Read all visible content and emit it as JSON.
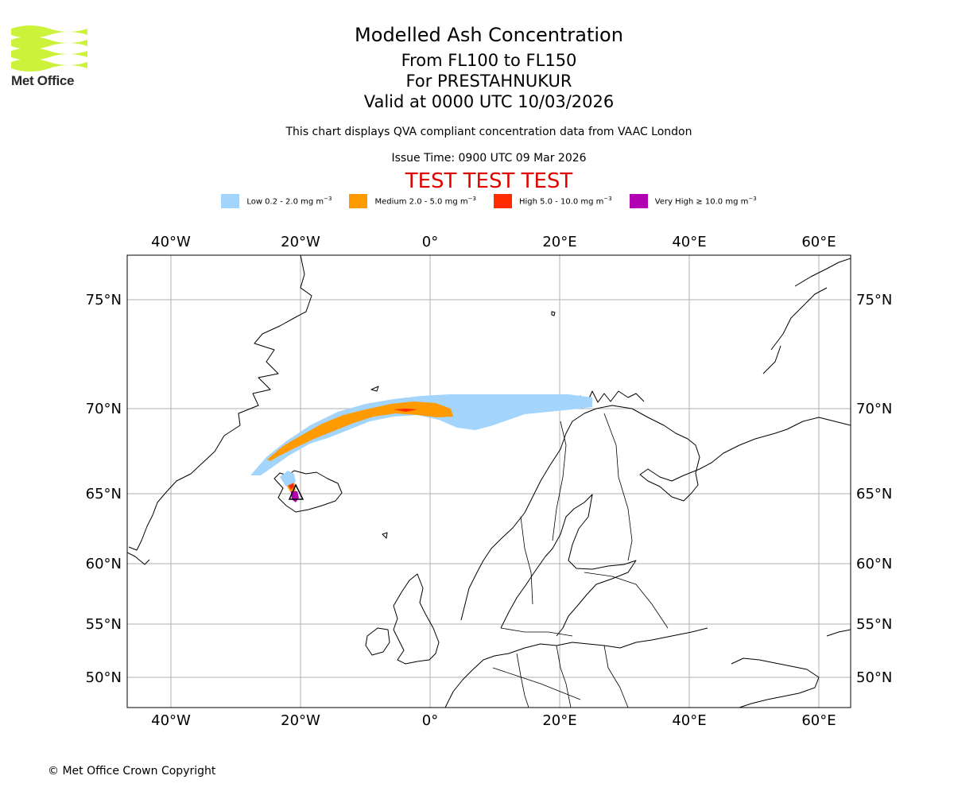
{
  "header": {
    "logo_text": "Met Office",
    "title": "Modelled Ash Concentration",
    "flight_levels": "From FL100 to FL150",
    "volcano": "For PRESTAHNUKUR",
    "valid_time": "Valid at 0000 UTC 10/03/2026",
    "description": "This chart displays QVA compliant concentration data from VAAC London",
    "issue_time": "Issue Time: 0900 UTC 09 Mar 2026",
    "test_banner": "TEST TEST TEST"
  },
  "legend": [
    {
      "label": "Low 0.2 - 2.0 mg m",
      "unit_exp": "−3",
      "color": "#a3d4fb"
    },
    {
      "label": "Medium 2.0 - 5.0 mg m",
      "unit_exp": "−3",
      "color": "#ff9a00"
    },
    {
      "label": "High 5.0 - 10.0 mg m",
      "unit_exp": "−3",
      "color": "#ff2c00"
    },
    {
      "label": "Very High ≥ 10.0 mg m",
      "unit_exp": "−3",
      "color": "#b000b2"
    }
  ],
  "map": {
    "lon_labels": [
      "40°W",
      "20°W",
      "0°",
      "20°E",
      "40°E",
      "60°E"
    ],
    "lat_labels": [
      "75°N",
      "70°N",
      "65°N",
      "60°N",
      "55°N",
      "50°N"
    ],
    "gridlines": true
  },
  "footer": {
    "copyright": "© Met Office Crown Copyright"
  }
}
